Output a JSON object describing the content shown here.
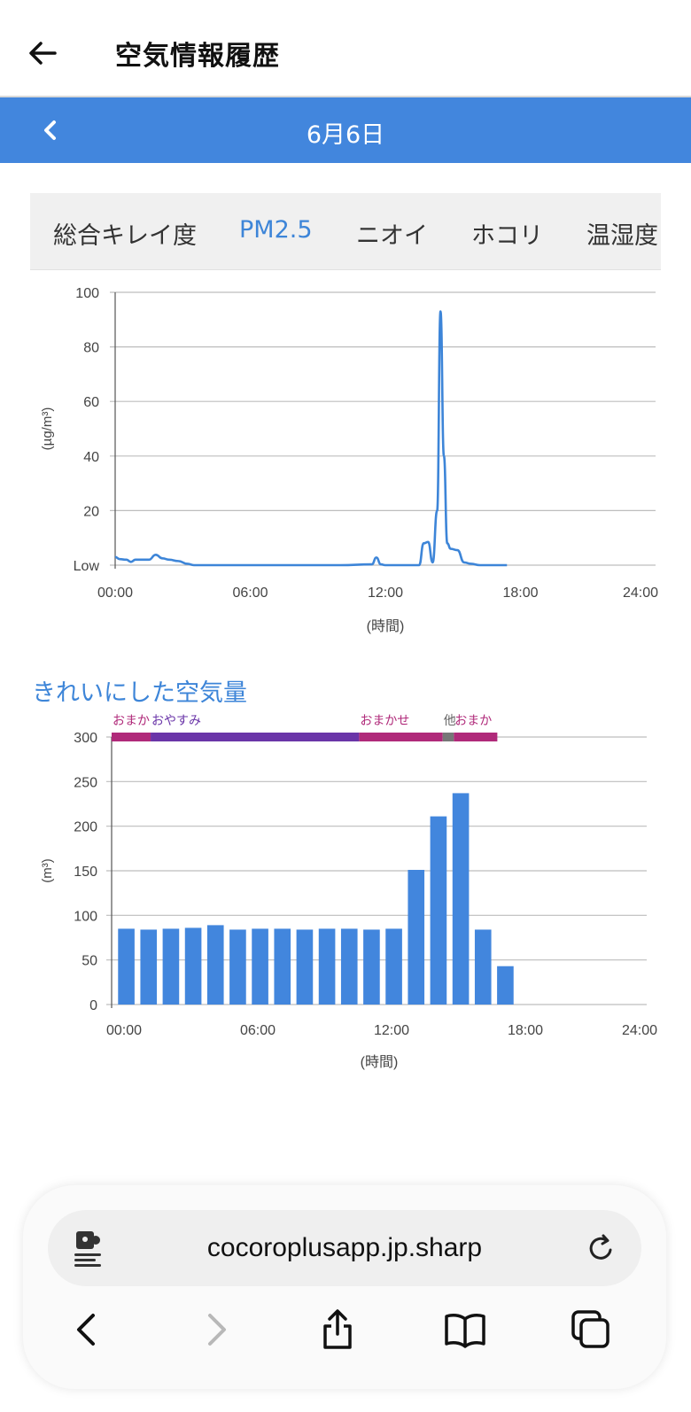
{
  "header": {
    "title": "空気情報履歴"
  },
  "date_bar": {
    "date": "6月6日"
  },
  "tabs": [
    {
      "label": "総合キレイ度",
      "active": false
    },
    {
      "label": "PM2.5",
      "active": true
    },
    {
      "label": "ニオイ",
      "active": false
    },
    {
      "label": "ホコリ",
      "active": false
    },
    {
      "label": "温湿度",
      "active": false
    }
  ],
  "section": {
    "clean_air_title": "きれいにした空気量"
  },
  "colors": {
    "accent": "#4286dd",
    "line": "#3d85d8",
    "mode_omakase": "#b02a7a",
    "mode_oyasumi": "#6a35a8",
    "mode_other": "#777777"
  },
  "chart_data": [
    {
      "type": "line",
      "title": "",
      "xlabel": "(時間)",
      "ylabel": "(µg/m³)",
      "xlim": [
        "00:00",
        "24:00"
      ],
      "ylim": [
        0,
        100
      ],
      "x_ticks": [
        "00:00",
        "06:00",
        "12:00",
        "18:00",
        "24:00"
      ],
      "y_ticks": [
        "Low",
        "20",
        "40",
        "60",
        "80",
        "100"
      ],
      "grid": true,
      "series": [
        {
          "x": [
            0,
            0.2,
            0.5,
            0.7,
            0.9,
            1.2,
            1.5,
            1.8,
            2.1,
            2.4,
            2.8,
            3.2,
            3.5,
            4,
            6,
            8,
            10,
            11.4,
            11.6,
            11.8,
            12,
            13.5,
            13.7,
            13.9,
            14.1,
            14.3,
            14.45,
            14.6,
            14.75,
            14.9,
            15.2,
            15.5,
            15.8,
            16.2,
            16.5,
            17.0,
            17.4
          ],
          "y": [
            3,
            2.2,
            2,
            1.2,
            2,
            2,
            2,
            3.8,
            2.5,
            2,
            1.5,
            0.5,
            0,
            0,
            0,
            0,
            0,
            0.3,
            2.8,
            0.3,
            0,
            0,
            8,
            8.5,
            1,
            20,
            93,
            40,
            8,
            6,
            5.5,
            1,
            0.5,
            0,
            0,
            0,
            0
          ]
        }
      ]
    },
    {
      "type": "bar",
      "title": "",
      "xlabel": "(時間)",
      "ylabel": "(m³)",
      "xlim": [
        "00:00",
        "24:00"
      ],
      "ylim": [
        0,
        300
      ],
      "x_ticks": [
        "00:00",
        "06:00",
        "12:00",
        "18:00",
        "24:00"
      ],
      "y_ticks": [
        "0",
        "50",
        "100",
        "150",
        "200",
        "250",
        "300"
      ],
      "grid": true,
      "categories": [
        "0時",
        "1時",
        "2時",
        "3時",
        "4時",
        "5時",
        "6時",
        "7時",
        "8時",
        "9時",
        "10時",
        "11時",
        "12時",
        "13時",
        "14時",
        "15時",
        "16時",
        "17時"
      ],
      "values": [
        85,
        84,
        85,
        86,
        89,
        84,
        85,
        85,
        84,
        85,
        85,
        84,
        85,
        151,
        211,
        237,
        84,
        43
      ],
      "mode_bands": [
        {
          "label": "おまか",
          "start": 0,
          "end": 1.75,
          "color": "#b02a7a"
        },
        {
          "label": "おやすみ",
          "start": 1.75,
          "end": 11.1,
          "color": "#6a35a8"
        },
        {
          "label": "おまかせ",
          "start": 11.1,
          "end": 14.85,
          "color": "#b02a7a"
        },
        {
          "label": "他",
          "start": 14.85,
          "end": 15.35,
          "color": "#777777"
        },
        {
          "label": "おまか",
          "start": 15.35,
          "end": 17.3,
          "color": "#b02a7a"
        }
      ]
    }
  ],
  "browser": {
    "url": "cocoroplusapp.jp.sharp"
  }
}
